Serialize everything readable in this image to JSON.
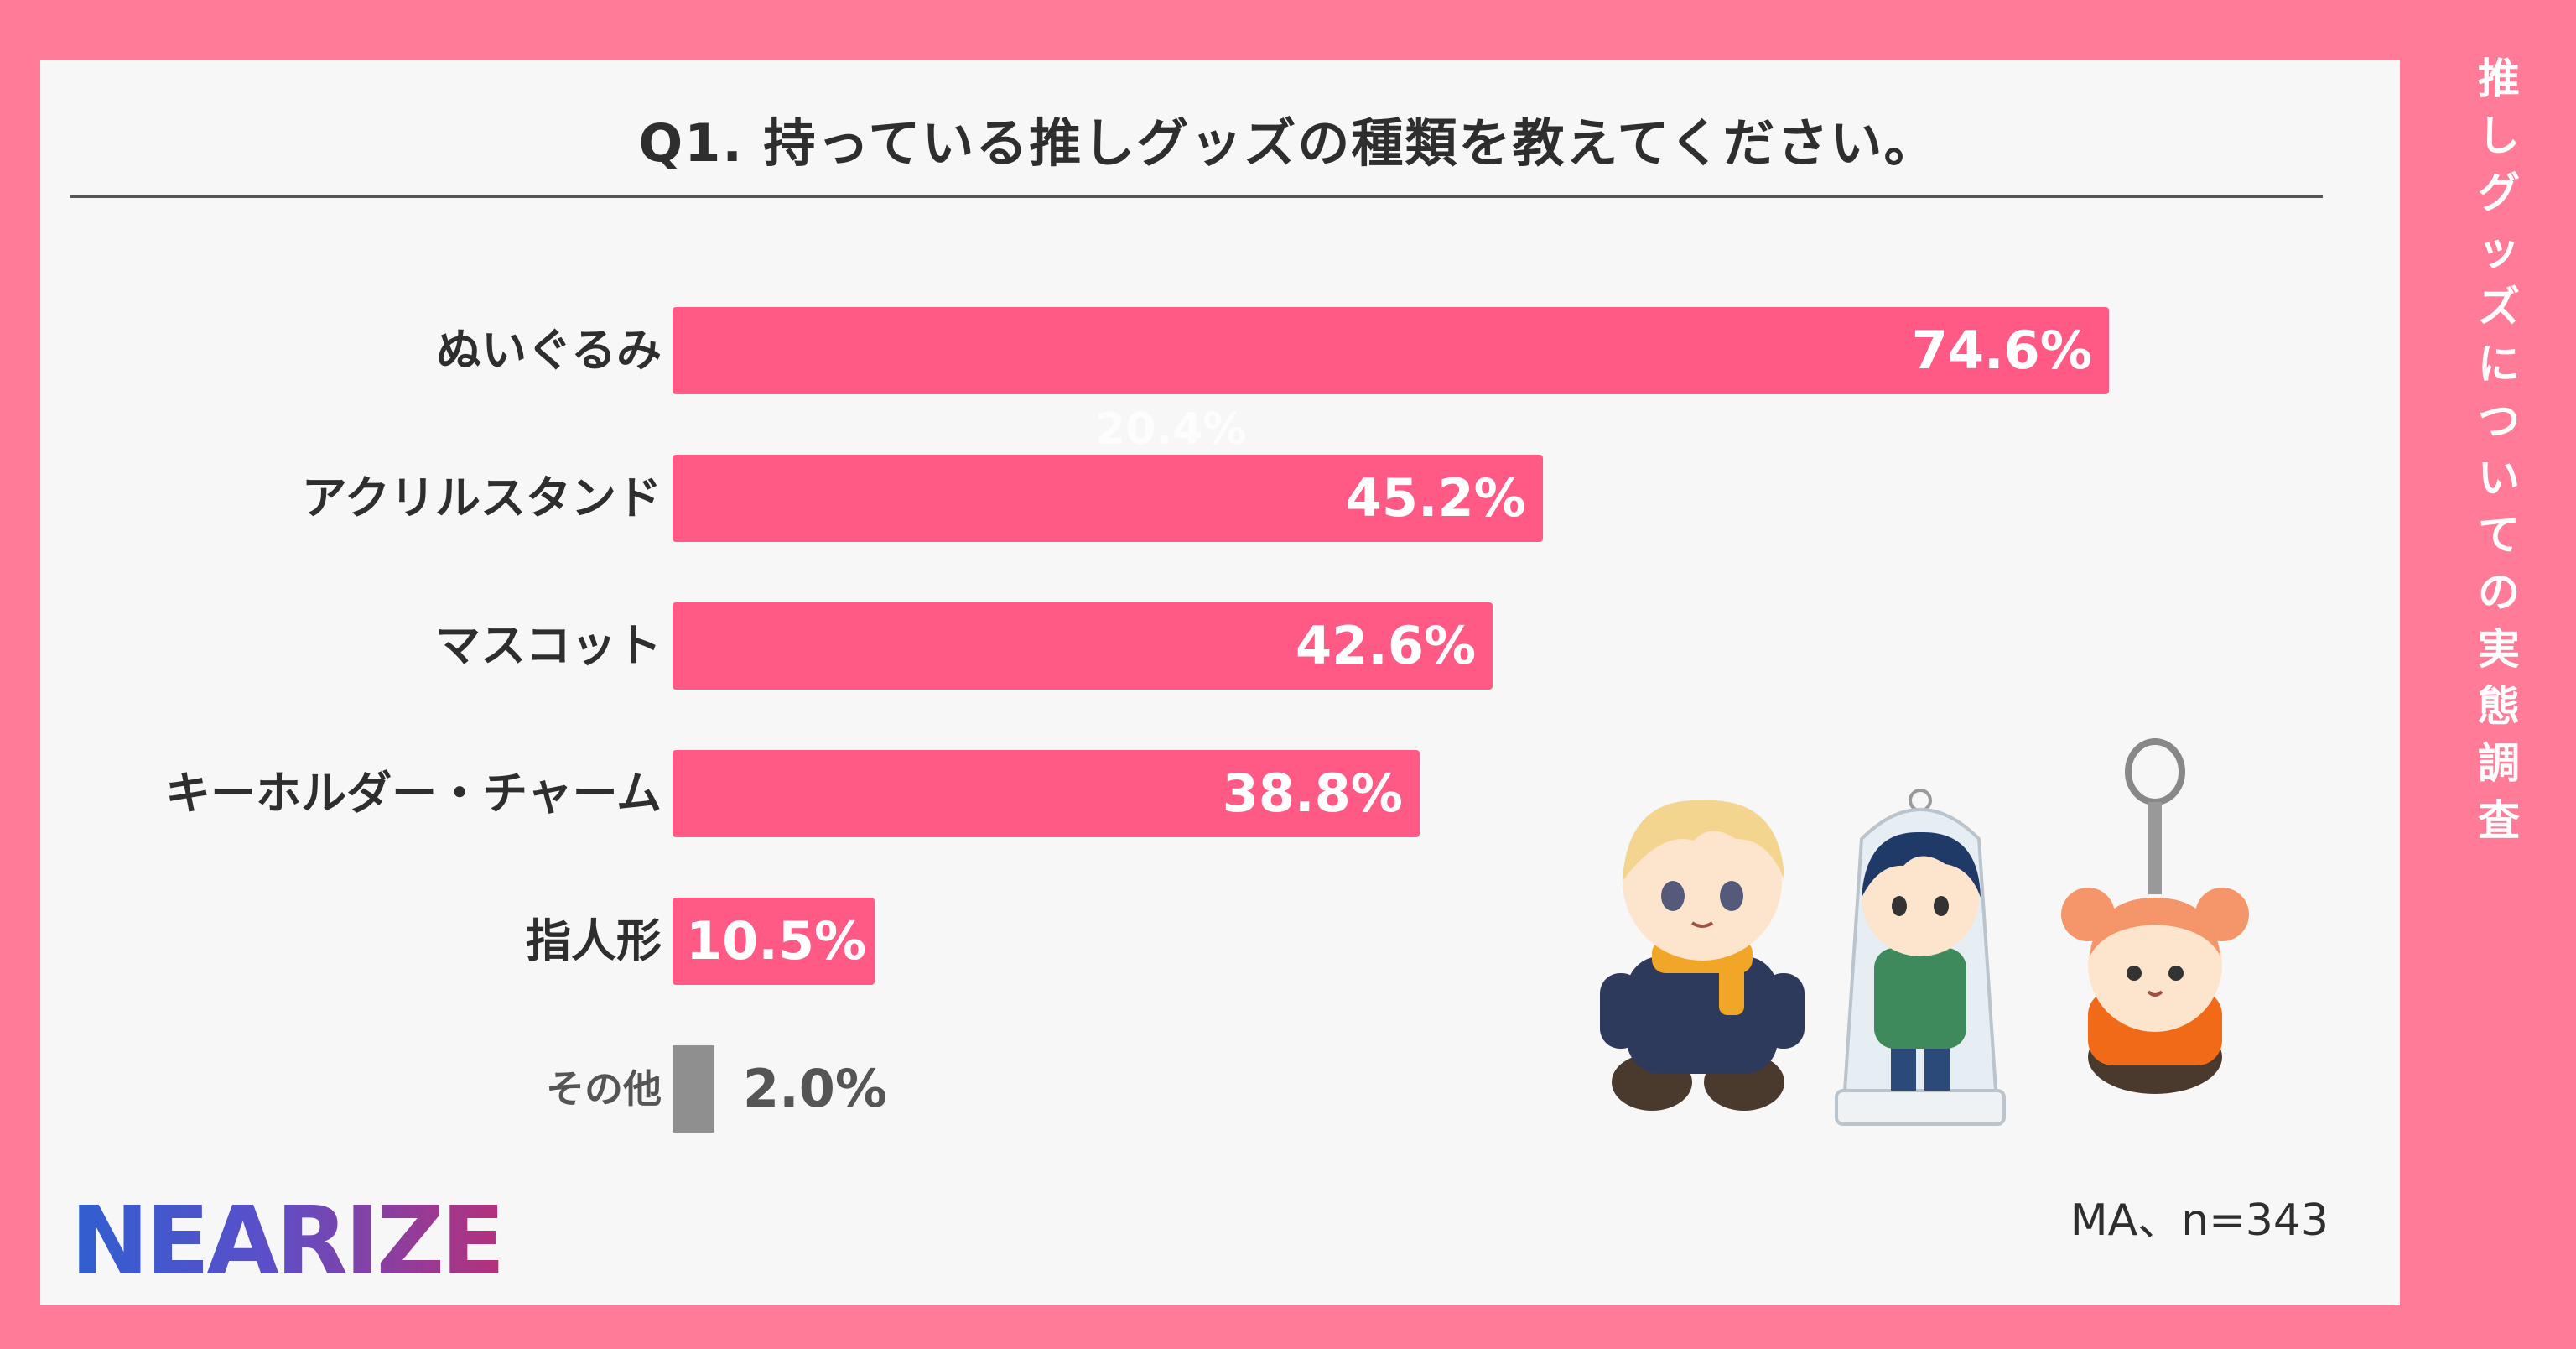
{
  "side_title": "推しグッズについての実態調査",
  "footnote": "MA、n=343",
  "logo_text": "NEARIZE",
  "ghost_label": "20.4%",
  "colors": {
    "background": "#ff7b98",
    "bar": "#ff5a85",
    "other_bar": "#8f8f8f",
    "panel": "#f7f7f7"
  },
  "chart_data": {
    "type": "bar",
    "orientation": "horizontal",
    "title": "Q1.  持っている推しグッズの種類を教えてください。",
    "categories": [
      "ぬいぐるみ",
      "アクリルスタンド",
      "マスコット",
      "キーホルダー・チャーム",
      "指人形",
      "その他"
    ],
    "values": [
      74.6,
      45.2,
      42.6,
      38.8,
      10.5,
      2.0
    ],
    "value_labels": [
      "74.6%",
      "45.2%",
      "42.6%",
      "38.8%",
      "10.5%",
      "2.0%"
    ],
    "unit": "%",
    "xlim": [
      0,
      100
    ],
    "grid": false,
    "legend": "none"
  }
}
